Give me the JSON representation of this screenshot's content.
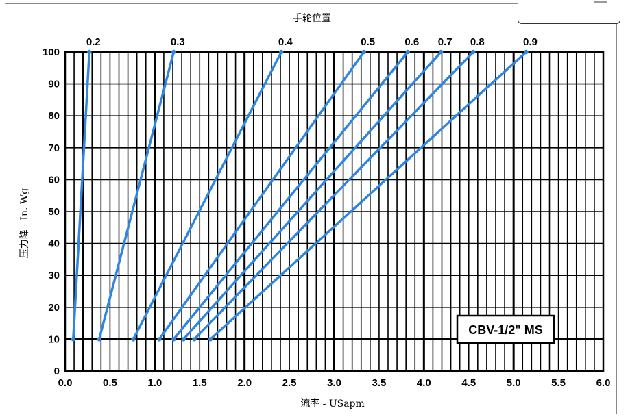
{
  "chart_data": {
    "type": "line",
    "title": "手轮位置",
    "xlabel": "流率 - USapm",
    "ylabel": "压力降 - In. Wg",
    "model_tag": "CBV-1/2\" MS",
    "xlim": [
      0.0,
      6.0
    ],
    "ylim": [
      0,
      100
    ],
    "x_ticks": [
      "0.0",
      "0.5",
      "1.0",
      "1.5",
      "2.0",
      "2.5",
      "3.0",
      "3.5",
      "4.0",
      "4.5",
      "5.0",
      "5.5",
      "6.0"
    ],
    "y_ticks": [
      "0",
      "10",
      "20",
      "30",
      "40",
      "50",
      "60",
      "70",
      "80",
      "90",
      "100"
    ],
    "grid": true,
    "series": [
      {
        "name": "0.2",
        "points": [
          [
            0.09,
            10
          ],
          [
            0.27,
            100
          ]
        ]
      },
      {
        "name": "0.3",
        "points": [
          [
            0.38,
            10
          ],
          [
            1.21,
            100
          ]
        ]
      },
      {
        "name": "0.4",
        "points": [
          [
            0.76,
            10
          ],
          [
            2.41,
            100
          ]
        ]
      },
      {
        "name": "0.5",
        "points": [
          [
            1.05,
            10
          ],
          [
            3.33,
            100
          ]
        ]
      },
      {
        "name": "0.6",
        "points": [
          [
            1.21,
            10
          ],
          [
            3.82,
            100
          ]
        ]
      },
      {
        "name": "0.7",
        "points": [
          [
            1.32,
            10
          ],
          [
            4.19,
            100
          ]
        ]
      },
      {
        "name": "0.8",
        "points": [
          [
            1.44,
            10
          ],
          [
            4.55,
            100
          ]
        ]
      },
      {
        "name": "0.9",
        "points": [
          [
            1.62,
            10
          ],
          [
            5.14,
            100
          ]
        ]
      }
    ],
    "line_color": "#2e86e0"
  }
}
